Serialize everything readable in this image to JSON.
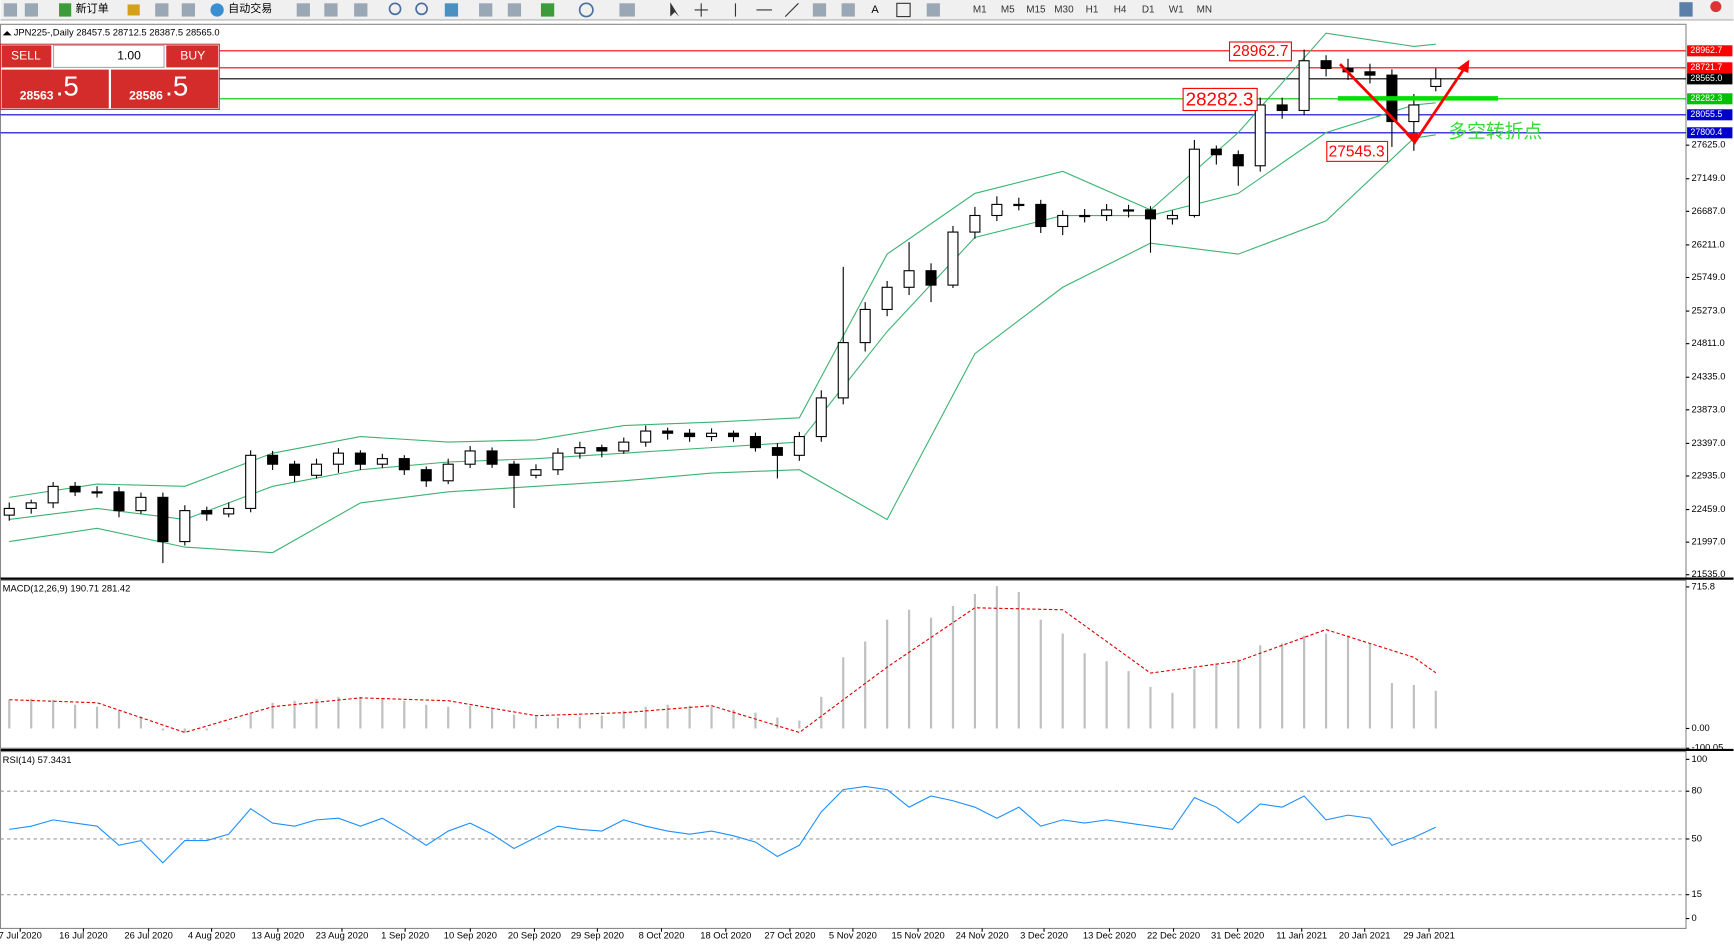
{
  "toolbar": {
    "new_order": "新订单",
    "auto_trading": "自动交易",
    "timeframes": [
      "M1",
      "M5",
      "M15",
      "M30",
      "H1",
      "H4",
      "D1",
      "W1",
      "MN"
    ]
  },
  "trade_panel": {
    "sell": "SELL",
    "volume": "1.00",
    "buy": "BUY",
    "bid_main": "28563",
    "bid_frac": ".5",
    "ask_main": "28586",
    "ask_frac": ".5"
  },
  "annotations": [
    "28962.7",
    "28282.3",
    "27545.3",
    "多空转折点"
  ],
  "chart_data": [
    {
      "type": "candlestick",
      "title": "JPN225-,Daily 28457.5 28712.5 28387.5 28565.0",
      "xlim": [
        -0.4,
        76.4
      ],
      "xticks": [
        {
          "value": 0.5,
          "label": "7 Jul 2020"
        },
        {
          "value": 3.38,
          "label": "16 Jul 2020"
        },
        {
          "value": 6.35,
          "label": "26 Jul 2020"
        },
        {
          "value": 9.22,
          "label": "4 Aug 2020"
        },
        {
          "value": 12.24,
          "label": "13 Aug 2020"
        },
        {
          "value": 15.16,
          "label": "23 Aug 2020"
        },
        {
          "value": 18.04,
          "label": "1 Sep 2020"
        },
        {
          "value": 21.01,
          "label": "10 Sep 2020"
        },
        {
          "value": 23.93,
          "label": "20 Sep 2020"
        },
        {
          "value": 26.8,
          "label": "29 Sep 2020"
        },
        {
          "value": 29.72,
          "label": "8 Oct 2020"
        },
        {
          "value": 32.65,
          "label": "18 Oct 2020"
        },
        {
          "value": 35.57,
          "label": "27 Oct 2020"
        },
        {
          "value": 38.44,
          "label": "5 Nov 2020"
        },
        {
          "value": 41.41,
          "label": "15 Nov 2020"
        },
        {
          "value": 44.33,
          "label": "24 Nov 2020"
        },
        {
          "value": 47.15,
          "label": "3 Dec 2020"
        },
        {
          "value": 50.13,
          "label": "13 Dec 2020"
        },
        {
          "value": 53.05,
          "label": "22 Dec 2020"
        },
        {
          "value": 55.97,
          "label": "31 Dec 2020"
        },
        {
          "value": 58.89,
          "label": "11 Jan 2021"
        },
        {
          "value": 61.76,
          "label": "20 Jan 2021"
        },
        {
          "value": 64.69,
          "label": "29 Jan 2021"
        }
      ],
      "ylim": [
        21488,
        29307
      ],
      "yticks": [
        {
          "value": 21535,
          "label": "21535.0"
        },
        {
          "value": 21997,
          "label": "21997.0"
        },
        {
          "value": 22459,
          "label": "22459.0"
        },
        {
          "value": 22935,
          "label": "22935.0"
        },
        {
          "value": 23397,
          "label": "23397.0"
        },
        {
          "value": 23873,
          "label": "23873.0"
        },
        {
          "value": 24335,
          "label": "24335.0"
        },
        {
          "value": 24811,
          "label": "24811.0"
        },
        {
          "value": 25273,
          "label": "25273.0"
        },
        {
          "value": 25749,
          "label": "25749.0"
        },
        {
          "value": 26211,
          "label": "26211.0"
        },
        {
          "value": 26687,
          "label": "26687.0"
        },
        {
          "value": 27149,
          "label": "27149.0"
        },
        {
          "value": 27625,
          "label": "27625.0"
        }
      ],
      "up_color": "#ffffff",
      "down_color": "#000000",
      "open": [
        22380,
        22475,
        22554,
        22788,
        22710,
        22710,
        22444,
        22632,
        22005,
        22444,
        22397,
        22475,
        23228,
        23102,
        22945,
        23102,
        23259,
        23102,
        23181,
        23024,
        22867,
        23102,
        23290,
        23102,
        22945,
        23024,
        23259,
        23337,
        23290,
        23415,
        23572,
        23541,
        23494,
        23541,
        23494,
        23337,
        23228,
        23494,
        24042,
        24826,
        25296,
        25610,
        25845,
        25641,
        26393,
        26628,
        26785,
        26785,
        26472,
        26628,
        26628,
        26707,
        26707,
        26581,
        26628,
        27568,
        27490,
        27333,
        28195,
        28117,
        28822,
        28712,
        28665,
        28618,
        27960,
        28457.5
      ],
      "high": [
        22560,
        22600,
        22850,
        22850,
        22790,
        22780,
        22700,
        22700,
        22520,
        22500,
        22560,
        23300,
        23290,
        23150,
        23180,
        23330,
        23300,
        23250,
        23230,
        23070,
        23180,
        23360,
        23340,
        23150,
        23100,
        23330,
        23420,
        23380,
        23480,
        23650,
        23620,
        23600,
        23610,
        23580,
        23550,
        23400,
        23560,
        24150,
        25900,
        25400,
        25700,
        26250,
        25950,
        26480,
        26750,
        26900,
        26880,
        26850,
        26700,
        26720,
        26790,
        26780,
        26760,
        26700,
        27700,
        27620,
        27550,
        28300,
        28300,
        28980,
        28900,
        28850,
        28780,
        28700,
        28350,
        28712.5
      ],
      "low": [
        22300,
        22400,
        22480,
        22650,
        22630,
        22350,
        22400,
        21700,
        21950,
        22300,
        22350,
        22420,
        23020,
        22850,
        22900,
        22980,
        23020,
        23050,
        22950,
        22780,
        22820,
        23050,
        23050,
        22480,
        22900,
        22950,
        23180,
        23200,
        23250,
        23350,
        23450,
        23420,
        23430,
        23420,
        23280,
        22900,
        23150,
        23420,
        23950,
        24700,
        25200,
        25500,
        25400,
        25600,
        26300,
        26550,
        26700,
        26380,
        26350,
        26530,
        26550,
        26600,
        26100,
        26500,
        26600,
        27350,
        27050,
        27250,
        28000,
        28050,
        28600,
        28550,
        28500,
        27600,
        27545.3,
        28387.5
      ],
      "close": [
        22475,
        22554,
        22788,
        22710,
        22710,
        22444,
        22632,
        22005,
        22444,
        22397,
        22475,
        23228,
        23102,
        22945,
        23102,
        23259,
        23102,
        23181,
        23024,
        22867,
        23102,
        23290,
        23102,
        22945,
        23024,
        23259,
        23337,
        23290,
        23415,
        23572,
        23541,
        23494,
        23541,
        23494,
        23337,
        23228,
        23494,
        24042,
        24826,
        25296,
        25610,
        25845,
        25641,
        26393,
        26628,
        26785,
        26785,
        26472,
        26628,
        26628,
        26707,
        26707,
        26581,
        26628,
        27568,
        27490,
        27333,
        28195,
        28117,
        28822,
        28712,
        28665,
        28618,
        27960,
        28195,
        28565
      ],
      "bands": {
        "x": [
          0,
          4,
          8,
          12,
          16,
          20,
          24,
          28,
          32,
          36,
          40,
          44,
          48,
          52,
          56,
          60,
          64,
          65
        ],
        "color": "#3cb371",
        "series": [
          {
            "values": [
              22632,
              22820,
              22788,
              23259,
              23494,
              23415,
              23447,
              23650,
              23697,
              23760,
              26080,
              26941,
              27255,
              26707,
              27803,
              29213,
              29025,
              29056
            ]
          },
          {
            "values": [
              22318,
              22475,
              22318,
              22788,
              23024,
              23133,
              23181,
              23259,
              23337,
              23415,
              24983,
              26315,
              26628,
              26628,
              26941,
              27803,
              28195,
              28226
            ]
          },
          {
            "values": [
              22005,
              22193,
              21927,
              21849,
              22554,
              22710,
              22788,
              22867,
              22977,
              23024,
              22318,
              24669,
              25610,
              26236,
              26080,
              26550,
              27725,
              27772
            ]
          }
        ]
      },
      "levels": [
        {
          "value": 28962.7,
          "color": "#ff0000"
        },
        {
          "value": 28721.7,
          "color": "#ff0000"
        },
        {
          "value": 28565,
          "label": "28565.0",
          "color": "#000000"
        },
        {
          "value": 28282.3,
          "color": "#00c000"
        },
        {
          "value": 28055.5,
          "color": "#0000cd"
        },
        {
          "value": 27800.4,
          "color": "#0000cd"
        }
      ]
    },
    {
      "type": "macd",
      "title": "MACD(12,26,9) 190.71 281.42",
      "ylim": [
        -100.05,
        749.3
      ],
      "yticks": [
        {
          "value": 715.8,
          "label": "715.8"
        },
        {
          "value": 0,
          "label": "0.00"
        },
        {
          "value": -100.05,
          "label": "-100.05"
        }
      ],
      "histogram": {
        "color": "#c0c0c0",
        "values": [
          145,
          150,
          145,
          120,
          110,
          90,
          60,
          -10,
          -20,
          -10,
          -5,
          80,
          130,
          140,
          150,
          160,
          160,
          155,
          140,
          120,
          110,
          115,
          105,
          70,
          60,
          55,
          60,
          65,
          90,
          110,
          120,
          115,
          110,
          95,
          80,
          55,
          40,
          160,
          360,
          440,
          550,
          600,
          560,
          620,
          680,
          720,
          690,
          550,
          480,
          380,
          340,
          290,
          210,
          180,
          300,
          330,
          350,
          420,
          430,
          470,
          480,
          470,
          430,
          230,
          220,
          190.71
        ]
      },
      "signal": {
        "color": "#e00000",
        "x": [
          0,
          4,
          8,
          12,
          16,
          20,
          24,
          28,
          32,
          36,
          40,
          44,
          48,
          52,
          56,
          60,
          64,
          65
        ],
        "values": [
          145,
          130,
          -20,
          110,
          155,
          140,
          65,
          80,
          115,
          -20,
          310,
          610,
          600,
          280,
          340,
          500,
          360,
          281.42
        ]
      }
    },
    {
      "type": "line",
      "title": "RSI(14) 57.3431",
      "ylim": [
        -6.2,
        104.9
      ],
      "yticks": [
        100,
        80,
        50,
        15,
        0
      ],
      "color": "#1e90ff",
      "values": [
        56,
        58,
        62,
        60,
        58,
        46,
        49,
        35,
        49,
        49,
        53,
        69,
        60,
        58,
        62,
        63,
        58,
        63,
        55,
        46,
        55,
        60,
        53,
        44,
        51,
        58,
        56,
        55,
        62,
        58,
        55,
        53,
        55,
        52,
        48,
        39,
        46,
        67,
        81,
        83,
        81,
        70,
        77,
        74,
        70,
        63,
        70,
        58,
        62,
        60,
        62,
        60,
        58,
        56,
        76,
        70,
        60,
        72,
        70,
        77,
        62,
        65,
        63,
        46,
        51,
        57.3431
      ]
    }
  ]
}
